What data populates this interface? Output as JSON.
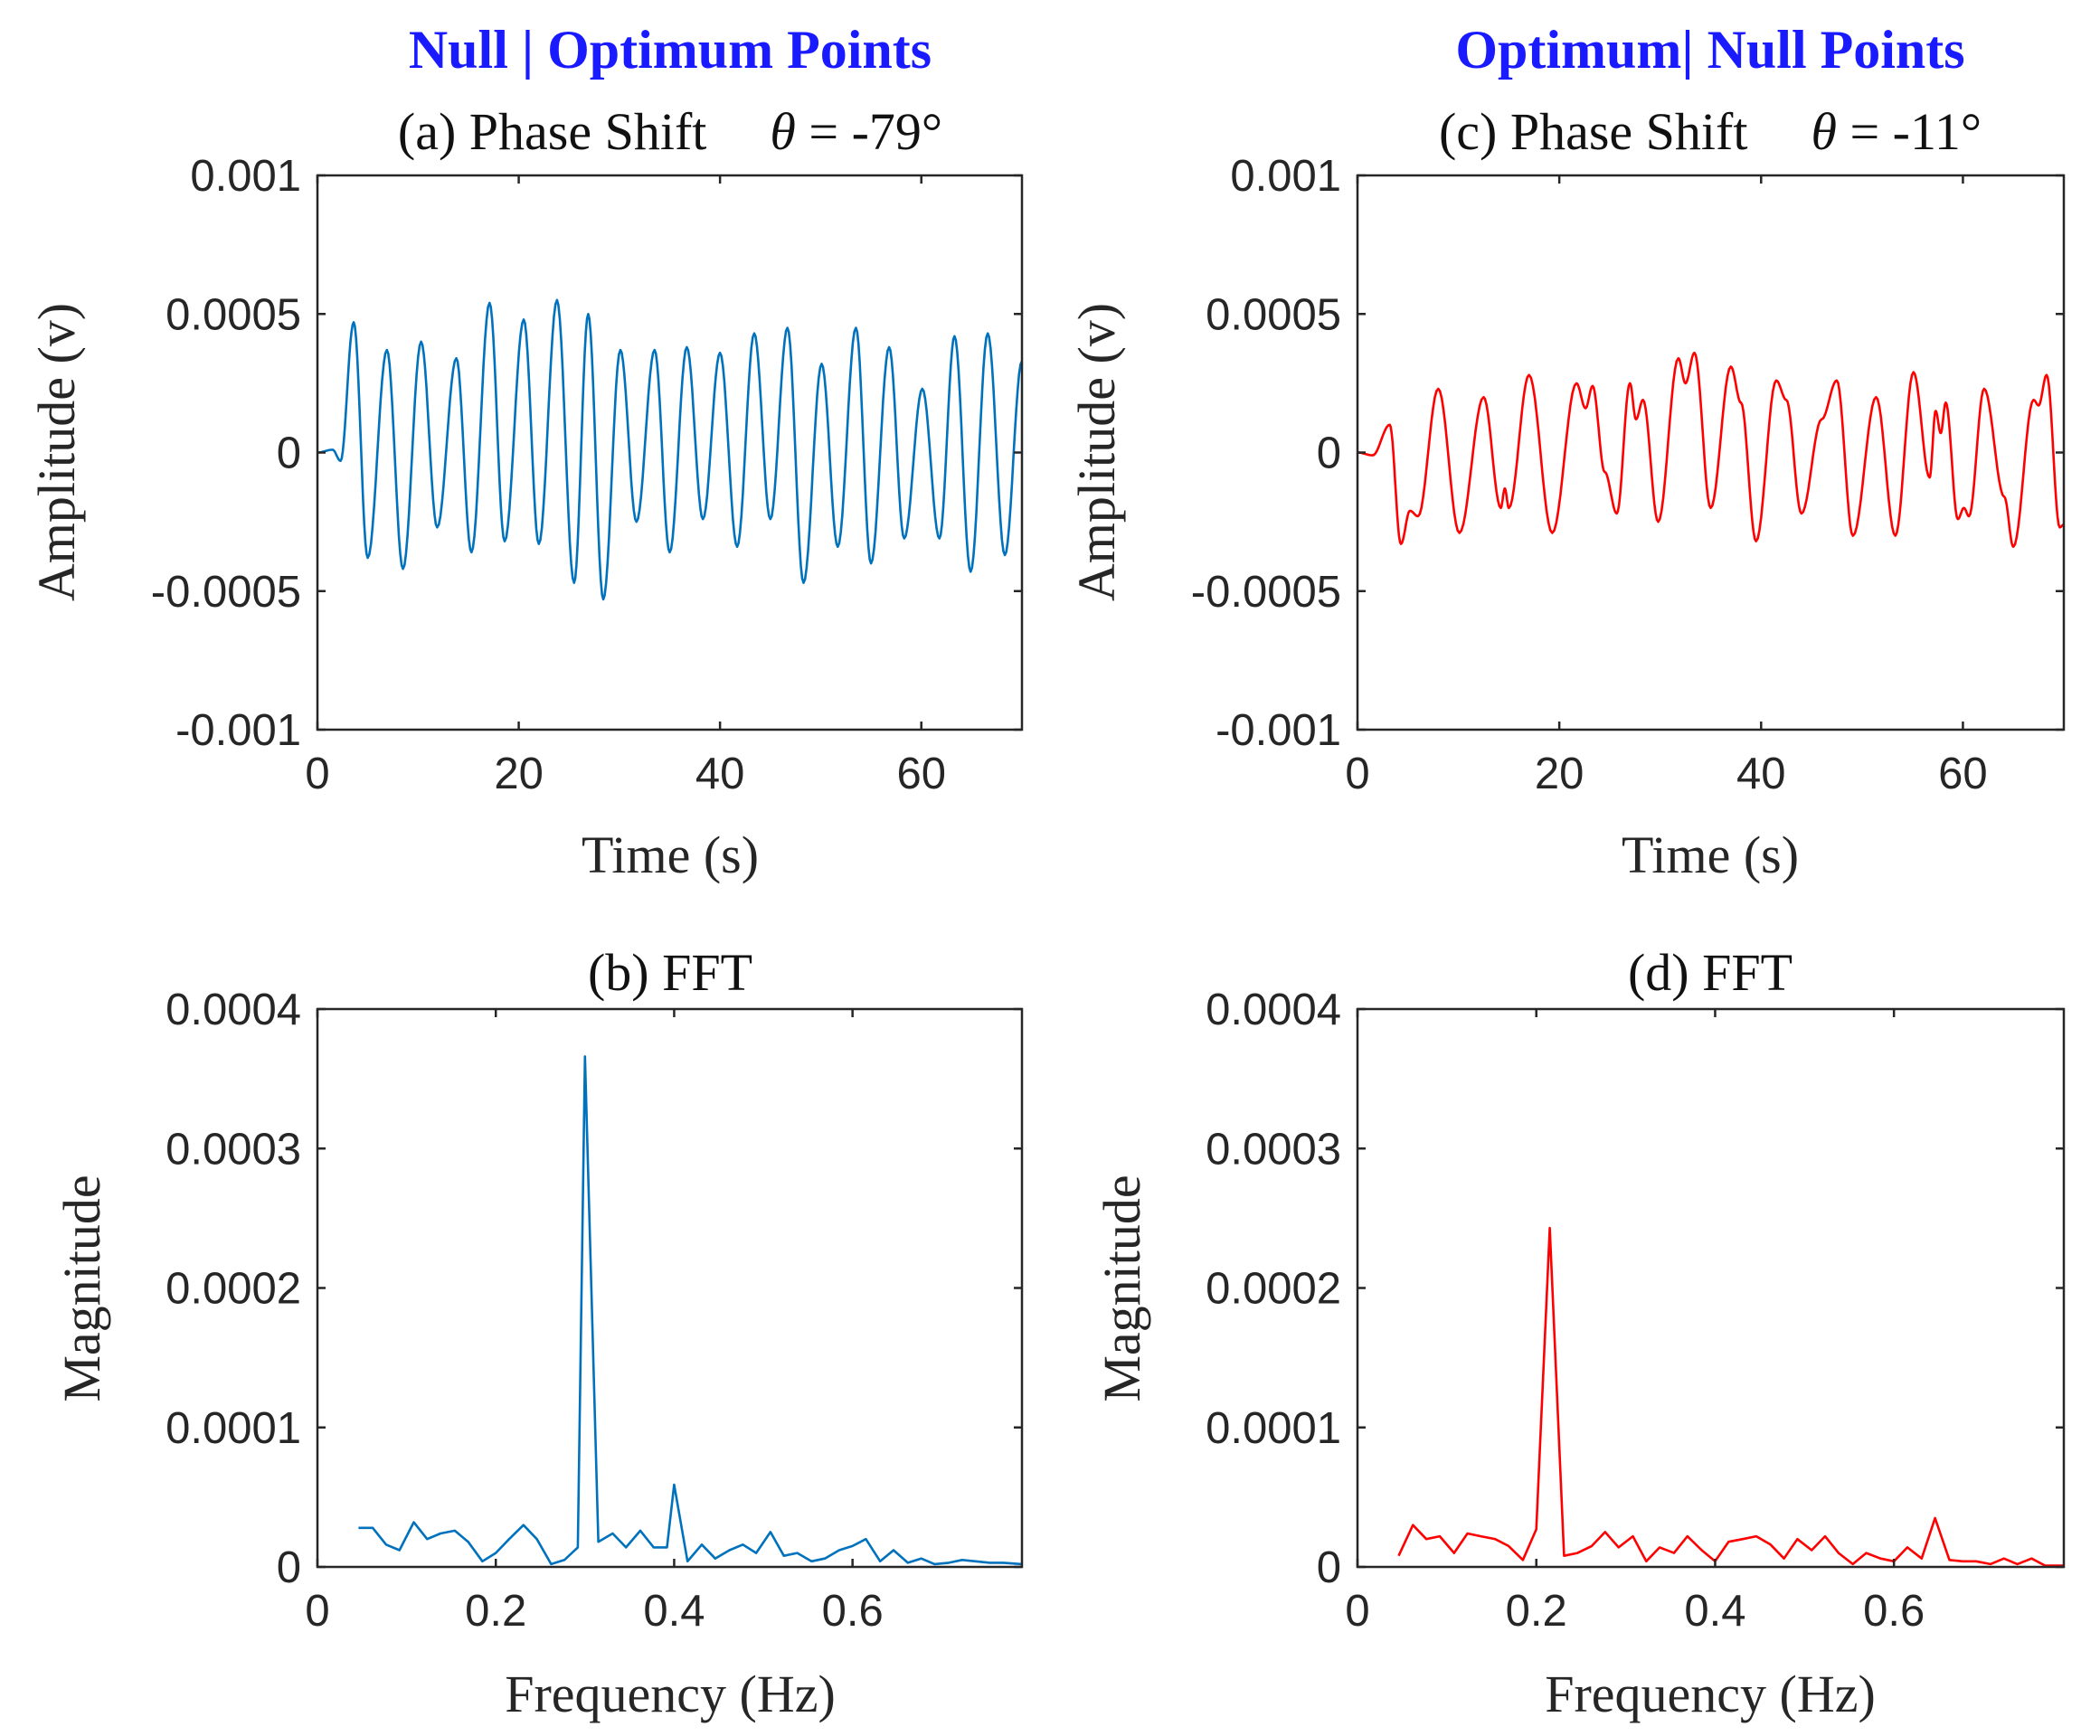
{
  "headers": {
    "left": "Null | Optimum Points",
    "right": "Optimum| Null Points",
    "color": "#1a1aff"
  },
  "chart_data": [
    {
      "id": "a",
      "type": "line",
      "title_prefix": "(a) Phase Shift",
      "theta_symbol": "θ",
      "theta_value": " = -79°",
      "xlabel": "Time (s)",
      "ylabel": "Amplitude (v)",
      "xlim": [
        0,
        70
      ],
      "ylim": [
        -0.001,
        0.001
      ],
      "xticks": [
        0,
        20,
        40,
        60
      ],
      "xtick_labels": [
        "0",
        "20",
        "40",
        "60"
      ],
      "yticks": [
        -0.001,
        -0.0005,
        0,
        0.0005,
        0.001
      ],
      "ytick_labels": [
        "-0.001",
        "-0.0005",
        "0",
        "0.0005",
        "0.001"
      ],
      "color": "#0072bd",
      "series": [
        {
          "name": "signal",
          "peaks": [
            [
              0,
              0
            ],
            [
              1.5,
              1e-05
            ],
            [
              2.3,
              -3e-05
            ],
            [
              3.6,
              0.00047
            ],
            [
              5.0,
              -0.00038
            ],
            [
              6.9,
              0.00037
            ],
            [
              8.5,
              -0.00042
            ],
            [
              10.3,
              0.0004
            ],
            [
              11.9,
              -0.00027
            ],
            [
              13.8,
              0.00034
            ],
            [
              15.3,
              -0.00036
            ],
            [
              17.1,
              0.00054
            ],
            [
              18.6,
              -0.00032
            ],
            [
              20.5,
              0.00048
            ],
            [
              22.0,
              -0.00033
            ],
            [
              23.8,
              0.00055
            ],
            [
              25.5,
              -0.00047
            ],
            [
              26.9,
              0.0005
            ],
            [
              28.4,
              -0.00053
            ],
            [
              30.1,
              0.00037
            ],
            [
              31.7,
              -0.00025
            ],
            [
              33.5,
              0.00037
            ],
            [
              35.0,
              -0.00036
            ],
            [
              36.7,
              0.00038
            ],
            [
              38.3,
              -0.00024
            ],
            [
              40.0,
              0.00036
            ],
            [
              41.7,
              -0.00034
            ],
            [
              43.4,
              0.00043
            ],
            [
              45.0,
              -0.00024
            ],
            [
              46.7,
              0.00045
            ],
            [
              48.3,
              -0.00047
            ],
            [
              50.1,
              0.00032
            ],
            [
              51.7,
              -0.00034
            ],
            [
              53.5,
              0.00045
            ],
            [
              55.0,
              -0.0004
            ],
            [
              56.8,
              0.00038
            ],
            [
              58.3,
              -0.00031
            ],
            [
              60.1,
              0.00023
            ],
            [
              61.8,
              -0.00031
            ],
            [
              63.3,
              0.00042
            ],
            [
              64.9,
              -0.00043
            ],
            [
              66.6,
              0.00043
            ],
            [
              68.3,
              -0.00037
            ],
            [
              70.0,
              0.00033
            ]
          ]
        }
      ]
    },
    {
      "id": "b",
      "type": "line",
      "title": "(b) FFT",
      "xlabel": "Frequency (Hz)",
      "ylabel": "Magnitude",
      "xlim": [
        0,
        0.79
      ],
      "ylim": [
        0,
        0.0004
      ],
      "xticks": [
        0,
        0.2,
        0.4,
        0.6
      ],
      "xtick_labels": [
        "0",
        "0.2",
        "0.4",
        "0.6"
      ],
      "yticks": [
        0,
        0.0001,
        0.0002,
        0.0003,
        0.0004
      ],
      "ytick_labels": [
        "0",
        "0.0001",
        "0.0002",
        "0.0003",
        "0.0004"
      ],
      "color": "#0072bd",
      "series": [
        {
          "name": "fft",
          "x": [
            0.046,
            0.062,
            0.077,
            0.092,
            0.108,
            0.123,
            0.138,
            0.154,
            0.169,
            0.185,
            0.2,
            0.215,
            0.231,
            0.246,
            0.262,
            0.277,
            0.292,
            0.3,
            0.315,
            0.331,
            0.346,
            0.362,
            0.377,
            0.392,
            0.4,
            0.415,
            0.431,
            0.446,
            0.462,
            0.477,
            0.492,
            0.508,
            0.523,
            0.538,
            0.554,
            0.569,
            0.585,
            0.6,
            0.615,
            0.631,
            0.646,
            0.662,
            0.677,
            0.692,
            0.708,
            0.723,
            0.738,
            0.754,
            0.769,
            0.79
          ],
          "y": [
            2.8e-05,
            2.8e-05,
            1.6e-05,
            1.2e-05,
            3.2e-05,
            2e-05,
            2.4e-05,
            2.6e-05,
            1.8e-05,
            4e-06,
            1e-05,
            2e-05,
            3e-05,
            2e-05,
            2e-06,
            5e-06,
            1.4e-05,
            0.000366,
            1.8e-05,
            2.4e-05,
            1.4e-05,
            2.6e-05,
            1.4e-05,
            1.4e-05,
            5.9e-05,
            4e-06,
            1.6e-05,
            6e-06,
            1.2e-05,
            1.6e-05,
            1e-05,
            2.5e-05,
            8e-06,
            1e-05,
            4e-06,
            6e-06,
            1.2e-05,
            1.5e-05,
            2e-05,
            4e-06,
            1.2e-05,
            3e-06,
            6e-06,
            2e-06,
            3e-06,
            5e-06,
            4e-06,
            3e-06,
            3e-06,
            2e-06
          ]
        }
      ]
    },
    {
      "id": "c",
      "type": "line",
      "title_prefix": "(c) Phase Shift",
      "theta_symbol": "θ",
      "theta_value": " = -11°",
      "xlabel": "Time (s)",
      "ylabel": "Amplitude (v)",
      "xlim": [
        0,
        70
      ],
      "ylim": [
        -0.001,
        0.001
      ],
      "xticks": [
        0,
        20,
        40,
        60
      ],
      "xtick_labels": [
        "0",
        "20",
        "40",
        "60"
      ],
      "yticks": [
        -0.001,
        -0.0005,
        0,
        0.0005,
        0.001
      ],
      "ytick_labels": [
        "-0.001",
        "-0.0005",
        "0",
        "0.0005",
        "0.001"
      ],
      "color": "#ff0000",
      "series": [
        {
          "name": "signal",
          "peaks": [
            [
              0,
              0
            ],
            [
              1.5,
              -1e-05
            ],
            [
              3.2,
              0.0001
            ],
            [
              4.3,
              -0.00033
            ],
            [
              5.2,
              -0.00021
            ],
            [
              6.0,
              -0.00023
            ],
            [
              8.0,
              0.00023
            ],
            [
              10.1,
              -0.00029
            ],
            [
              12.5,
              0.0002
            ],
            [
              14.2,
              -0.0002
            ],
            [
              14.6,
              -0.00013
            ],
            [
              15.0,
              -0.0002
            ],
            [
              17.0,
              0.00028
            ],
            [
              19.3,
              -0.00029
            ],
            [
              21.7,
              0.00025
            ],
            [
              22.6,
              0.00016
            ],
            [
              23.3,
              0.00024
            ],
            [
              24.5,
              -7e-05
            ],
            [
              25.7,
              -0.00022
            ],
            [
              27.0,
              0.00025
            ],
            [
              27.6,
              0.00012
            ],
            [
              28.3,
              0.00019
            ],
            [
              29.8,
              -0.00025
            ],
            [
              31.8,
              0.00034
            ],
            [
              32.5,
              0.00025
            ],
            [
              33.4,
              0.00036
            ],
            [
              35.0,
              -0.0002
            ],
            [
              37.0,
              0.00031
            ],
            [
              38.0,
              0.00018
            ],
            [
              39.5,
              -0.00032
            ],
            [
              41.5,
              0.00026
            ],
            [
              42.5,
              0.00019
            ],
            [
              44.0,
              -0.00022
            ],
            [
              46.0,
              0.00012
            ],
            [
              47.5,
              0.00026
            ],
            [
              49.1,
              -0.0003
            ],
            [
              51.4,
              0.0002
            ],
            [
              53.3,
              -0.0003
            ],
            [
              55.1,
              0.00029
            ],
            [
              56.7,
              -9e-05
            ],
            [
              57.3,
              0.00015
            ],
            [
              57.8,
              7e-05
            ],
            [
              58.3,
              0.00018
            ],
            [
              59.5,
              -0.00024
            ],
            [
              60.1,
              -0.0002
            ],
            [
              60.6,
              -0.00023
            ],
            [
              62.1,
              0.00023
            ],
            [
              64.1,
              -0.00016
            ],
            [
              65.0,
              -0.00034
            ],
            [
              67.0,
              0.00019
            ],
            [
              67.5,
              0.00017
            ],
            [
              68.3,
              0.00028
            ],
            [
              69.6,
              -0.00027
            ],
            [
              70.0,
              -0.00026
            ]
          ]
        }
      ]
    },
    {
      "id": "d",
      "type": "line",
      "title": "(d) FFT",
      "xlabel": "Frequency (Hz)",
      "ylabel": "Magnitude",
      "xlim": [
        0,
        0.79
      ],
      "ylim": [
        0,
        0.0004
      ],
      "xticks": [
        0,
        0.2,
        0.4,
        0.6
      ],
      "xtick_labels": [
        "0",
        "0.2",
        "0.4",
        "0.6"
      ],
      "yticks": [
        0,
        0.0001,
        0.0002,
        0.0003,
        0.0004
      ],
      "ytick_labels": [
        "0",
        "0.0001",
        "0.0002",
        "0.0003",
        "0.0004"
      ],
      "color": "#ff0000",
      "series": [
        {
          "name": "fft",
          "x": [
            0.046,
            0.062,
            0.077,
            0.092,
            0.108,
            0.123,
            0.138,
            0.154,
            0.169,
            0.185,
            0.2,
            0.215,
            0.231,
            0.246,
            0.262,
            0.277,
            0.292,
            0.308,
            0.323,
            0.338,
            0.354,
            0.369,
            0.385,
            0.4,
            0.415,
            0.431,
            0.446,
            0.462,
            0.477,
            0.492,
            0.508,
            0.523,
            0.538,
            0.554,
            0.569,
            0.585,
            0.6,
            0.615,
            0.631,
            0.646,
            0.662,
            0.677,
            0.692,
            0.708,
            0.723,
            0.738,
            0.754,
            0.769,
            0.79
          ],
          "y": [
            8e-06,
            3e-05,
            2e-05,
            2.2e-05,
            1e-05,
            2.4e-05,
            2.2e-05,
            2e-05,
            1.5e-05,
            5e-06,
            2.7e-05,
            0.000243,
            8e-06,
            1e-05,
            1.5e-05,
            2.5e-05,
            1.4e-05,
            2.2e-05,
            4e-06,
            1.4e-05,
            1e-05,
            2.2e-05,
            1.2e-05,
            4e-06,
            1.8e-05,
            2e-05,
            2.2e-05,
            1.6e-05,
            6e-06,
            2e-05,
            1.2e-05,
            2.2e-05,
            1e-05,
            2e-06,
            1e-05,
            6e-06,
            4e-06,
            1.4e-05,
            6e-06,
            3.5e-05,
            5e-06,
            4e-06,
            4e-06,
            2e-06,
            6e-06,
            2e-06,
            6e-06,
            1e-06,
            1e-06
          ]
        }
      ]
    }
  ]
}
